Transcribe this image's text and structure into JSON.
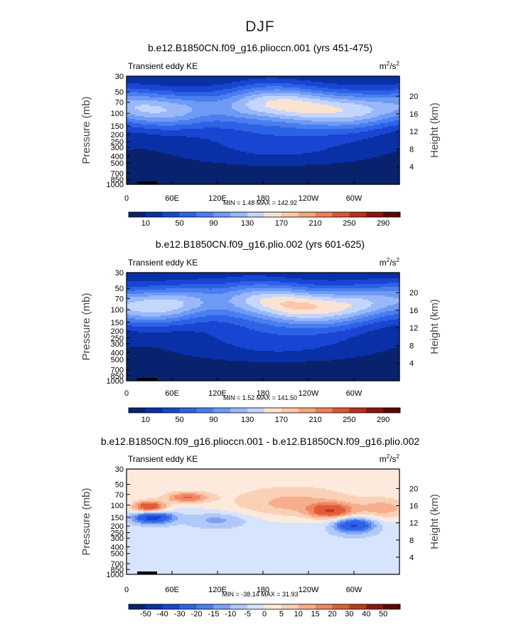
{
  "figure_title": "DJF",
  "chart_data": [
    {
      "type": "heatmap",
      "title": "b.e12.B1850CN.f09_g16.plioccn.001 (yrs 451-475)",
      "left_label": "Transient eddy KE",
      "units_base": "m",
      "units_exp1": "2",
      "units_mid": "/s",
      "units_exp2": "2",
      "ylabel": "Pressure (mb)",
      "ylabel2": "Height (km)",
      "y_ticks": [
        "30",
        "50",
        "70",
        "100",
        "150",
        "200",
        "250",
        "300",
        "400",
        "500",
        "700",
        "850",
        "1000"
      ],
      "y2_ticks": [
        "20",
        "16",
        "12",
        "8",
        "4"
      ],
      "x_ticks": [
        "0",
        "60E",
        "120E",
        "180",
        "120W",
        "60W"
      ],
      "stats_min_label": "MIN =",
      "stats_min": "1.48",
      "stats_max_label": "MAX =",
      "stats_max": "142.92",
      "colorbar_labels": [
        "10",
        "50",
        "90",
        "130",
        "170",
        "210",
        "250",
        "290"
      ],
      "contour_levels": [
        10,
        30,
        50,
        70,
        90,
        110,
        130,
        150,
        170,
        190,
        210,
        230,
        250,
        270,
        290
      ],
      "field_kind": "ke",
      "field_variant": 0
    },
    {
      "type": "heatmap",
      "title": "b.e12.B1850CN.f09_g16.plio.002 (yrs 601-625)",
      "left_label": "Transient eddy KE",
      "units_base": "m",
      "units_exp1": "2",
      "units_mid": "/s",
      "units_exp2": "2",
      "ylabel": "Pressure (mb)",
      "ylabel2": "Height (km)",
      "y_ticks": [
        "30",
        "50",
        "70",
        "100",
        "150",
        "200",
        "250",
        "300",
        "400",
        "500",
        "700",
        "850",
        "1000"
      ],
      "y2_ticks": [
        "20",
        "16",
        "12",
        "8",
        "4"
      ],
      "x_ticks": [
        "0",
        "60E",
        "120E",
        "180",
        "120W",
        "60W"
      ],
      "stats_min_label": "MIN =",
      "stats_min": "1.52",
      "stats_max_label": "MAX =",
      "stats_max": "141.50",
      "colorbar_labels": [
        "10",
        "50",
        "90",
        "130",
        "170",
        "210",
        "250",
        "290"
      ],
      "contour_levels": [
        10,
        30,
        50,
        70,
        90,
        110,
        130,
        150,
        170,
        190,
        210,
        230,
        250,
        270,
        290
      ],
      "field_kind": "ke",
      "field_variant": 1
    },
    {
      "type": "heatmap",
      "title": "b.e12.B1850CN.f09_g16.plioccn.001 - b.e12.B1850CN.f09_g16.plio.002",
      "left_label": "Transient eddy KE",
      "units_base": "m",
      "units_exp1": "2",
      "units_mid": "/s",
      "units_exp2": "2",
      "ylabel": "Pressure (mb)",
      "ylabel2": "Height (km)",
      "y_ticks": [
        "30",
        "50",
        "70",
        "100",
        "150",
        "200",
        "250",
        "300",
        "400",
        "500",
        "700",
        "850",
        "1000"
      ],
      "y2_ticks": [
        "20",
        "16",
        "12",
        "8",
        "4"
      ],
      "x_ticks": [
        "0",
        "60E",
        "120E",
        "180",
        "120W",
        "60W"
      ],
      "stats_min_label": "MIN =",
      "stats_min": "-38.14",
      "stats_max_label": "MAX =",
      "stats_max": "31.93",
      "colorbar_labels": [
        "-50",
        "-40",
        "-30",
        "-20",
        "-15",
        "-10",
        "-5",
        "0",
        "5",
        "10",
        "15",
        "20",
        "30",
        "40",
        "50"
      ],
      "contour_levels": [
        -50,
        -40,
        -30,
        -20,
        -15,
        -10,
        -5,
        0,
        5,
        10,
        15,
        20,
        30,
        40,
        50
      ],
      "field_kind": "diff",
      "field_variant": 2
    }
  ],
  "colors": {
    "ke_palette": [
      "#08226e",
      "#0a30a8",
      "#1846d2",
      "#2e62e6",
      "#4a7ef0",
      "#6e9af6",
      "#98b8fa",
      "#c4d6fc",
      "#fbe3d1",
      "#f9c8ab",
      "#f5a57f",
      "#ed7f57",
      "#dc5532",
      "#b8301c",
      "#8a1410",
      "#5e0606"
    ],
    "diff_palette": [
      "#08226e",
      "#0a30a8",
      "#1846d2",
      "#2e62e6",
      "#4a7ef0",
      "#7ea2f5",
      "#b1c8fa",
      "#d6e4fd",
      "#fdeadd",
      "#fad0b7",
      "#f6ae8c",
      "#ef875f",
      "#e05d38",
      "#c0361f",
      "#8d1710",
      "#5e0606"
    ]
  }
}
